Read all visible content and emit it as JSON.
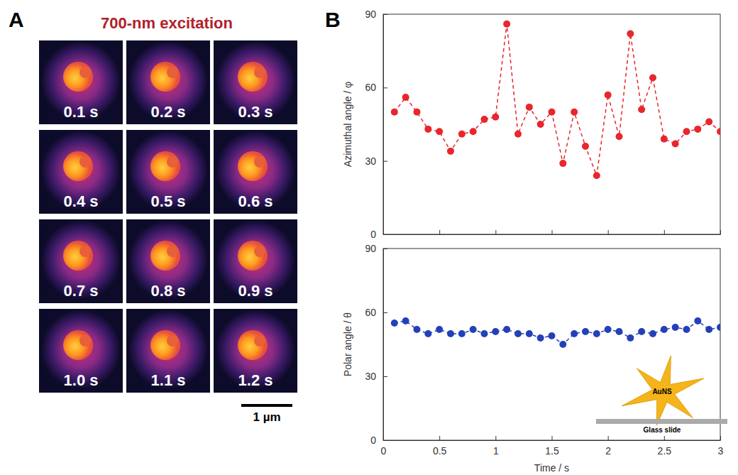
{
  "panel_a": {
    "letter": "A",
    "title": "700-nm excitation",
    "frames": [
      "0.1 s",
      "0.2 s",
      "0.3 s",
      "0.4 s",
      "0.5 s",
      "0.6 s",
      "0.7 s",
      "0.8 s",
      "0.9 s",
      "1.0 s",
      "1.1 s",
      "1.2 s"
    ],
    "scale_bar": "1 µm"
  },
  "panel_b": {
    "letter": "B"
  },
  "chart_data": [
    {
      "type": "line",
      "y_label": "Azimuthal angle / φ",
      "x": [
        0.1,
        0.2,
        0.3,
        0.4,
        0.5,
        0.6,
        0.7,
        0.8,
        0.9,
        1.0,
        1.1,
        1.2,
        1.3,
        1.4,
        1.5,
        1.6,
        1.7,
        1.8,
        1.9,
        2.0,
        2.1,
        2.2,
        2.3,
        2.4,
        2.5,
        2.6,
        2.7,
        2.8,
        2.9,
        3.0
      ],
      "values": [
        50,
        56,
        50,
        43,
        42,
        34,
        41,
        42,
        47,
        48,
        86,
        41,
        52,
        45,
        50,
        29,
        50,
        36,
        24,
        57,
        40,
        82,
        51,
        64,
        39,
        37,
        42,
        43,
        46,
        42
      ],
      "color": "#e8262c",
      "marker": "circle",
      "line_style": "dashed",
      "xlim": [
        0,
        3
      ],
      "xticks": [
        0,
        0.5,
        1,
        1.5,
        2,
        2.5,
        3
      ],
      "ylim": [
        0,
        90
      ],
      "yticks": [
        0,
        30,
        60,
        90
      ],
      "tick_labels": "y",
      "grid": false
    },
    {
      "type": "line",
      "x_label": "Time / s",
      "y_label": "Polar angle / θ",
      "x": [
        0.1,
        0.2,
        0.3,
        0.4,
        0.5,
        0.6,
        0.7,
        0.8,
        0.9,
        1.0,
        1.1,
        1.2,
        1.3,
        1.4,
        1.5,
        1.6,
        1.7,
        1.8,
        1.9,
        2.0,
        2.1,
        2.2,
        2.3,
        2.4,
        2.5,
        2.6,
        2.7,
        2.8,
        2.9,
        3.0
      ],
      "values": [
        55,
        56,
        52,
        50,
        52,
        50,
        50,
        52,
        50,
        51,
        52,
        50,
        50,
        48,
        49,
        45,
        50,
        51,
        50,
        52,
        51,
        48,
        51,
        50,
        52,
        53,
        52,
        56,
        52,
        53
      ],
      "color": "#2440b8",
      "marker": "circle",
      "line_style": "dashed",
      "xlim": [
        0,
        3
      ],
      "xticks": [
        0,
        0.5,
        1,
        1.5,
        2,
        2.5,
        3
      ],
      "ylim": [
        0,
        90
      ],
      "yticks": [
        0,
        30,
        60,
        90
      ],
      "grid": false,
      "annotations": [
        "AuNS",
        "Glass slide"
      ]
    }
  ]
}
